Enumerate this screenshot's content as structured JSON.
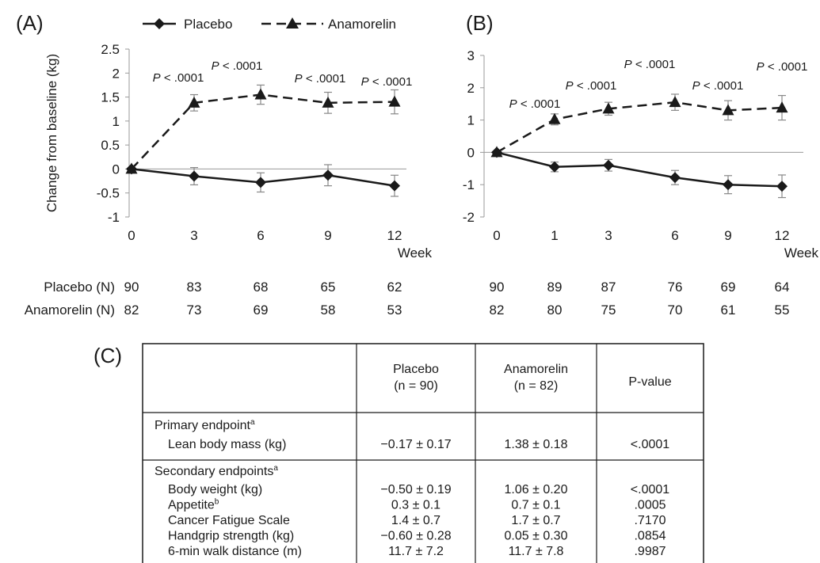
{
  "panels": {
    "a_label": "(A)",
    "b_label": "(B)",
    "c_label": "(C)"
  },
  "legend": {
    "placebo": "Placebo",
    "anamorelin": "Anamorelin"
  },
  "colors": {
    "ink": "#1a1a1a",
    "error_bar": "#888888",
    "zero_line": "#9a9a9a"
  },
  "chart_data": [
    {
      "type": "line",
      "panel": "(A)",
      "ylabel": "Change from baseline (kg)",
      "xlabel": "Week",
      "x": [
        0,
        3,
        6,
        9,
        12
      ],
      "ylim": [
        -1,
        2.5
      ],
      "yticks": [
        2.5,
        2,
        1.5,
        1,
        0.5,
        0,
        -0.5,
        -1
      ],
      "series": [
        {
          "name": "Placebo",
          "style": "solid",
          "marker": "diamond",
          "values": [
            0,
            -0.15,
            -0.28,
            -0.13,
            -0.35
          ],
          "errors": [
            0,
            0.18,
            0.2,
            0.22,
            0.22
          ]
        },
        {
          "name": "Anamorelin",
          "style": "dashed",
          "marker": "triangle",
          "values": [
            0,
            1.38,
            1.55,
            1.38,
            1.4
          ],
          "errors": [
            0,
            0.17,
            0.2,
            0.22,
            0.25
          ]
        }
      ],
      "annotations": [
        {
          "text": "P < .0001",
          "x": 3
        },
        {
          "text": "P < .0001",
          "x": 6
        },
        {
          "text": "P < .0001",
          "x": 9
        },
        {
          "text": "P < .0001",
          "x": 12
        }
      ],
      "n_at_risk": {
        "Placebo (N)": [
          90,
          83,
          68,
          65,
          62
        ],
        "Anamorelin (N)": [
          82,
          73,
          69,
          58,
          53
        ]
      }
    },
    {
      "type": "line",
      "panel": "(B)",
      "xlabel": "Week",
      "x": [
        0,
        1,
        3,
        6,
        9,
        12
      ],
      "ylim": [
        -2,
        3
      ],
      "yticks": [
        3,
        2,
        1,
        0,
        -1,
        -2
      ],
      "series": [
        {
          "name": "Placebo",
          "style": "solid",
          "marker": "diamond",
          "values": [
            0,
            -0.45,
            -0.4,
            -0.78,
            -1.0,
            -1.05
          ],
          "errors": [
            0,
            0.15,
            0.18,
            0.22,
            0.28,
            0.35
          ]
        },
        {
          "name": "Anamorelin",
          "style": "dashed",
          "marker": "triangle",
          "values": [
            0,
            1.02,
            1.35,
            1.55,
            1.3,
            1.38
          ],
          "errors": [
            0,
            0.17,
            0.2,
            0.25,
            0.3,
            0.38
          ]
        }
      ],
      "annotations": [
        {
          "text": "P < .0001",
          "x": 1
        },
        {
          "text": "P < .0001",
          "x": 3
        },
        {
          "text": "P < .0001",
          "x": 6
        },
        {
          "text": "P < .0001",
          "x": 9
        },
        {
          "text": "P < .0001",
          "x": 12
        }
      ],
      "n_at_risk": {
        "Placebo (N)": [
          90,
          89,
          87,
          76,
          69,
          64
        ],
        "Anamorelin (N)": [
          82,
          80,
          75,
          70,
          61,
          55
        ]
      }
    },
    {
      "type": "table",
      "panel": "(C)",
      "columns": [
        "",
        "Placebo\n(n = 90)",
        "Anamorelin\n(n = 82)",
        "P-value"
      ],
      "sections": [
        {
          "header": "Primary endpoint",
          "header_sup": "a",
          "rows": [
            {
              "label": "Lean body mass (kg)",
              "sup": "",
              "placebo": "−0.17 ± 0.17",
              "anamorelin": "1.38 ± 0.18",
              "p": "<.0001"
            }
          ]
        },
        {
          "header": "Secondary endpoints",
          "header_sup": "a",
          "rows": [
            {
              "label": "Body weight (kg)",
              "sup": "",
              "placebo": "−0.50 ± 0.19",
              "anamorelin": "1.06 ± 0.20",
              "p": "<.0001"
            },
            {
              "label": "Appetite",
              "sup": "b",
              "placebo": "0.3 ± 0.1",
              "anamorelin": "0.7 ± 0.1",
              "p": ".0005"
            },
            {
              "label": "Cancer Fatigue Scale",
              "sup": "",
              "placebo": "1.4 ± 0.7",
              "anamorelin": "1.7 ± 0.7",
              "p": ".7170"
            },
            {
              "label": "Handgrip strength (kg)",
              "sup": "",
              "placebo": "−0.60 ± 0.28",
              "anamorelin": "0.05 ± 0.30",
              "p": ".0854"
            },
            {
              "label": "6-min walk distance (m)",
              "sup": "",
              "placebo": "11.7 ± 7.2",
              "anamorelin": "11.7 ± 7.8",
              "p": ".9987"
            }
          ]
        }
      ]
    }
  ]
}
